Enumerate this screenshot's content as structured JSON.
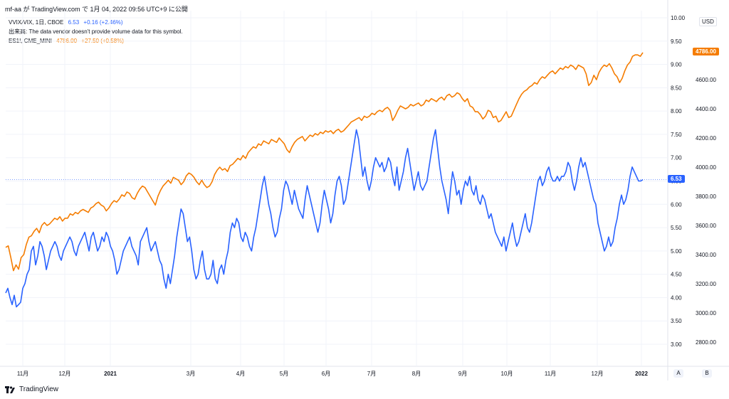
{
  "header": {
    "text": "mf-aa が TradingView.com で 1月 04, 2022 09:56 UTC+9 に公開"
  },
  "legend": {
    "vvix": {
      "label": "VVIX/VIX, 1日, CBOE",
      "value": "6.53",
      "change": "+0.16 (+2.46%)"
    },
    "volume_note": "出来高: The data vendor doesn't provide volume data for this symbol.",
    "es": {
      "label": "ES1!, CME_MINI",
      "value": "4786.00",
      "change": "+27.50 (+0.58%)"
    }
  },
  "scale_button": "USD",
  "axis_buttons": {
    "a": "A",
    "b": "B"
  },
  "footer": {
    "brand": "TradingView"
  },
  "colors": {
    "vvix": "#2962ff",
    "es": "#f57c00",
    "grid": "#f0f3fa"
  },
  "chart_data": {
    "type": "line",
    "x_labels": [
      "11月",
      "12月",
      "2021",
      "3月",
      "4月",
      "5月",
      "6月",
      "7月",
      "8月",
      "9月",
      "10月",
      "11月",
      "12月",
      "2022"
    ],
    "left_axis": {
      "ticks": [
        "10.00",
        "9.50",
        "9.00",
        "8.50",
        "8.00",
        "7.50",
        "7.00",
        "6.50",
        "6.00",
        "5.50",
        "5.00",
        "4.50",
        "4.00",
        "3.50",
        "3.00"
      ],
      "range": [
        2.6,
        10.0
      ]
    },
    "right_axis": {
      "ticks": [
        "4600.00",
        "4400.00",
        "4200.00",
        "4000.00",
        "3800.00",
        "3600.00",
        "3400.00",
        "3200.00",
        "3000.00",
        "2800.00"
      ],
      "range": [
        2620,
        4880
      ]
    },
    "last_values": {
      "vvix": "6.53",
      "es": "4786.00"
    },
    "series": [
      {
        "name": "VVIX/VIX",
        "axis": "left",
        "values": [
          4.1,
          4.2,
          4.0,
          3.85,
          4.05,
          3.8,
          3.85,
          3.9,
          4.2,
          4.3,
          4.5,
          4.6,
          5.0,
          5.1,
          4.7,
          4.9,
          5.2,
          5.1,
          4.9,
          4.6,
          4.8,
          5.0,
          5.1,
          5.2,
          5.1,
          4.9,
          4.8,
          5.0,
          5.1,
          5.2,
          5.3,
          5.2,
          5.0,
          4.9,
          5.1,
          5.2,
          5.3,
          5.4,
          5.2,
          5.0,
          5.3,
          5.4,
          5.2,
          5.0,
          5.1,
          5.3,
          5.2,
          5.4,
          5.3,
          5.1,
          5.0,
          4.8,
          4.5,
          4.6,
          4.8,
          5.0,
          5.1,
          5.2,
          5.3,
          5.1,
          5.0,
          4.9,
          4.7,
          5.2,
          5.3,
          5.4,
          5.5,
          5.2,
          5.0,
          5.1,
          5.2,
          5.0,
          4.8,
          4.7,
          4.4,
          4.2,
          4.5,
          4.3,
          4.6,
          4.9,
          5.3,
          5.6,
          5.9,
          5.8,
          5.5,
          5.2,
          5.3,
          5.0,
          4.6,
          4.4,
          4.5,
          4.8,
          5.0,
          4.6,
          4.4,
          4.4,
          4.5,
          4.8,
          4.4,
          4.3,
          4.6,
          4.7,
          4.5,
          4.8,
          5.0,
          5.4,
          5.6,
          5.5,
          5.7,
          5.6,
          5.3,
          5.2,
          5.4,
          5.3,
          5.1,
          5.0,
          5.3,
          5.5,
          5.8,
          6.1,
          6.4,
          6.6,
          6.3,
          6.0,
          5.8,
          5.5,
          5.3,
          5.4,
          5.7,
          5.9,
          6.3,
          6.5,
          6.4,
          6.2,
          6.0,
          6.3,
          6.1,
          5.9,
          5.8,
          5.7,
          6.1,
          6.4,
          6.2,
          6.0,
          5.8,
          5.6,
          5.4,
          5.6,
          6.0,
          6.3,
          6.1,
          5.9,
          5.6,
          5.8,
          6.2,
          6.5,
          6.6,
          6.4,
          6.0,
          6.1,
          6.4,
          6.7,
          7.0,
          7.3,
          7.6,
          7.4,
          7.0,
          6.6,
          6.8,
          6.5,
          6.3,
          6.5,
          6.8,
          7.0,
          6.9,
          6.8,
          6.9,
          6.7,
          6.8,
          7.0,
          6.9,
          6.6,
          6.4,
          6.8,
          6.3,
          6.5,
          6.7,
          7.0,
          7.2,
          6.9,
          6.6,
          6.3,
          6.5,
          6.7,
          6.4,
          6.3,
          6.4,
          6.5,
          6.8,
          7.1,
          7.4,
          7.6,
          7.2,
          6.8,
          6.5,
          6.3,
          6.1,
          5.8,
          6.3,
          6.7,
          6.5,
          6.2,
          6.3,
          6.0,
          6.3,
          6.5,
          6.4,
          6.6,
          6.3,
          6.2,
          6.4,
          6.1,
          6.0,
          6.2,
          6.1,
          5.9,
          5.7,
          5.8,
          5.6,
          5.4,
          5.3,
          5.2,
          5.1,
          5.3,
          5.0,
          5.2,
          5.4,
          5.6,
          5.3,
          5.1,
          5.2,
          5.4,
          5.6,
          5.8,
          5.5,
          5.4,
          5.6,
          5.9,
          6.2,
          6.5,
          6.6,
          6.4,
          6.5,
          6.7,
          6.8,
          6.6,
          6.5,
          6.5,
          6.6,
          6.5,
          6.6,
          6.6,
          6.7,
          6.9,
          6.8,
          6.5,
          6.3,
          6.5,
          6.8,
          7.0,
          6.8,
          6.9,
          6.7,
          6.5,
          6.3,
          6.1,
          6.0,
          5.6,
          5.4,
          5.2,
          5.0,
          5.1,
          5.3,
          5.1,
          5.2,
          5.5,
          5.7,
          6.0,
          6.2,
          6.0,
          6.1,
          6.3,
          6.6,
          6.8,
          6.7,
          6.6,
          6.5,
          6.5,
          6.53
        ]
      },
      {
        "name": "ES1!",
        "axis": "right",
        "values": [
          3450,
          3460,
          3380,
          3290,
          3330,
          3300,
          3380,
          3400,
          3470,
          3520,
          3530,
          3560,
          3580,
          3550,
          3600,
          3620,
          3600,
          3610,
          3630,
          3650,
          3640,
          3660,
          3630,
          3650,
          3650,
          3680,
          3670,
          3690,
          3680,
          3700,
          3710,
          3700,
          3690,
          3720,
          3730,
          3750,
          3760,
          3740,
          3730,
          3700,
          3720,
          3750,
          3770,
          3760,
          3780,
          3810,
          3800,
          3830,
          3820,
          3790,
          3780,
          3820,
          3850,
          3870,
          3860,
          3830,
          3800,
          3770,
          3740,
          3800,
          3840,
          3870,
          3890,
          3910,
          3890,
          3930,
          3920,
          3910,
          3880,
          3900,
          3940,
          3960,
          3950,
          3930,
          3900,
          3880,
          3910,
          3880,
          3860,
          3870,
          3900,
          3950,
          3980,
          4000,
          3980,
          3990,
          3970,
          4010,
          4020,
          4040,
          4060,
          4050,
          4080,
          4060,
          4100,
          4120,
          4140,
          4130,
          4160,
          4150,
          4180,
          4170,
          4160,
          4190,
          4180,
          4170,
          4200,
          4180,
          4160,
          4120,
          4100,
          4140,
          4170,
          4190,
          4200,
          4210,
          4180,
          4200,
          4220,
          4210,
          4230,
          4220,
          4240,
          4230,
          4250,
          4240,
          4250,
          4230,
          4250,
          4260,
          4240,
          4250,
          4270,
          4290,
          4310,
          4320,
          4330,
          4340,
          4320,
          4350,
          4340,
          4350,
          4370,
          4360,
          4380,
          4390,
          4380,
          4400,
          4410,
          4390,
          4320,
          4350,
          4390,
          4420,
          4410,
          4400,
          4410,
          4430,
          4420,
          4430,
          4440,
          4420,
          4430,
          4460,
          4450,
          4470,
          4460,
          4450,
          4470,
          4480,
          4460,
          4490,
          4500,
          4480,
          4490,
          4510,
          4500,
          4470,
          4450,
          4470,
          4420,
          4410,
          4380,
          4380,
          4360,
          4330,
          4350,
          4390,
          4380,
          4340,
          4350,
          4310,
          4320,
          4350,
          4380,
          4340,
          4350,
          4390,
          4430,
          4470,
          4500,
          4520,
          4530,
          4550,
          4560,
          4580,
          4570,
          4600,
          4620,
          4610,
          4630,
          4650,
          4660,
          4640,
          4660,
          4680,
          4670,
          4690,
          4680,
          4700,
          4690,
          4670,
          4700,
          4690,
          4680,
          4640,
          4560,
          4580,
          4630,
          4600,
          4650,
          4680,
          4700,
          4690,
          4710,
          4680,
          4640,
          4620,
          4580,
          4610,
          4660,
          4700,
          4720,
          4760,
          4770,
          4770,
          4760,
          4786
        ]
      }
    ]
  }
}
